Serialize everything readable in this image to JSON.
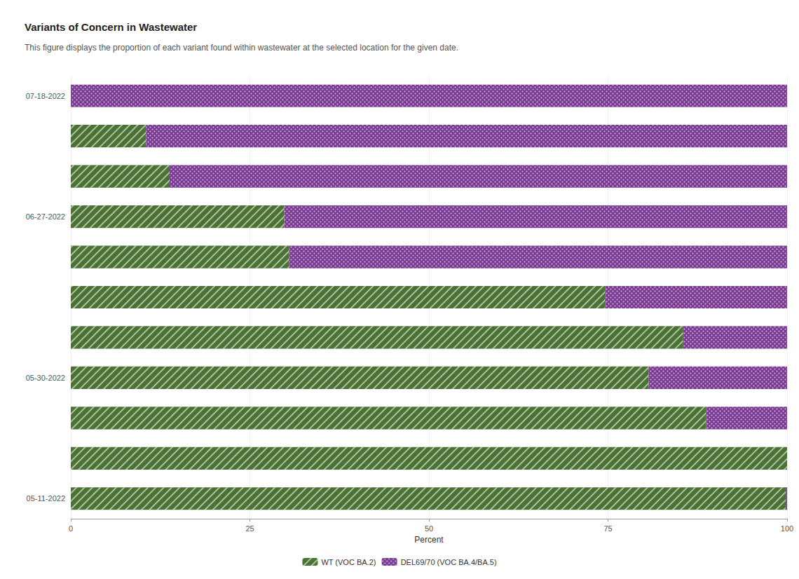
{
  "chart_data": {
    "type": "bar",
    "title": "Variants of Concern in Wastewater",
    "subtitle": "This figure displays the proportion of each variant found within wastewater at the selected location for the given date.",
    "orientation": "horizontal",
    "stacked": true,
    "categories": [
      "05-11-2022",
      null,
      null,
      "05-30-2022",
      null,
      null,
      null,
      "06-27-2022",
      null,
      null,
      "07-18-2022"
    ],
    "series": [
      {
        "name": "WT (VOC BA.2)",
        "color": "#4a7233",
        "values": [
          99.8,
          100,
          88.7,
          80.7,
          85.5,
          74.6,
          30.5,
          29.8,
          13.8,
          10.5,
          0
        ]
      },
      {
        "name": "DEL69/70 (VOC BA.4/BA.5)",
        "color": "#7a3b94",
        "values": [
          0.2,
          0,
          11.3,
          19.3,
          14.5,
          25.4,
          69.5,
          70.2,
          86.2,
          89.5,
          100
        ]
      }
    ],
    "xlabel": "Percent",
    "xlim": [
      0,
      100
    ],
    "xticks": [
      0,
      25,
      50,
      75,
      100
    ],
    "grid": true,
    "legend": "bottom"
  }
}
